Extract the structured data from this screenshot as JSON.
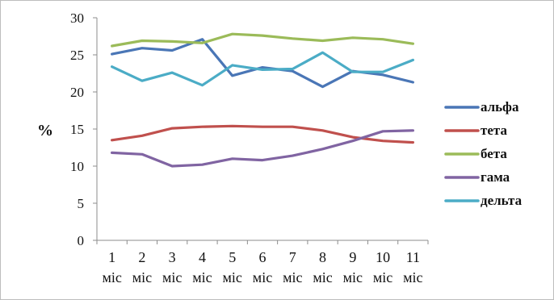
{
  "chart_data": {
    "type": "line",
    "title": "",
    "xlabel": "",
    "ylabel": "%",
    "ylim": [
      0,
      30
    ],
    "yticks": [
      "0",
      "5",
      "10",
      "15",
      "20",
      "25",
      "30"
    ],
    "categories": [
      {
        "n": "1",
        "unit": "міс"
      },
      {
        "n": "2",
        "unit": "міс"
      },
      {
        "n": "3",
        "unit": "міс"
      },
      {
        "n": "4",
        "unit": "міс"
      },
      {
        "n": "5",
        "unit": "міс"
      },
      {
        "n": "6",
        "unit": "міс"
      },
      {
        "n": "7",
        "unit": "міс"
      },
      {
        "n": "8",
        "unit": "міс"
      },
      {
        "n": "9",
        "unit": "міс"
      },
      {
        "n": "10",
        "unit": "міс"
      },
      {
        "n": "11",
        "unit": "міс"
      }
    ],
    "legend_position": "right",
    "grid": false,
    "series": [
      {
        "name": "альфа",
        "color": "#4a76b6",
        "values": [
          25.1,
          25.9,
          25.6,
          27.1,
          22.2,
          23.3,
          22.8,
          20.7,
          22.8,
          22.3,
          21.3
        ]
      },
      {
        "name": "тета",
        "color": "#c0504d",
        "values": [
          13.5,
          14.1,
          15.1,
          15.3,
          15.4,
          15.3,
          15.3,
          14.8,
          13.9,
          13.4,
          13.2
        ]
      },
      {
        "name": "бета",
        "color": "#9bbb59",
        "values": [
          26.2,
          26.9,
          26.8,
          26.6,
          27.8,
          27.6,
          27.2,
          26.9,
          27.3,
          27.1,
          26.5
        ]
      },
      {
        "name": "гама",
        "color": "#8064a2",
        "values": [
          11.8,
          11.6,
          10.0,
          10.2,
          11.0,
          10.8,
          11.4,
          12.3,
          13.4,
          14.7,
          14.8
        ]
      },
      {
        "name": "дельта",
        "color": "#4bacc6",
        "values": [
          23.4,
          21.5,
          22.6,
          20.9,
          23.6,
          23.0,
          23.1,
          25.3,
          22.7,
          22.7,
          24.3
        ]
      }
    ]
  }
}
